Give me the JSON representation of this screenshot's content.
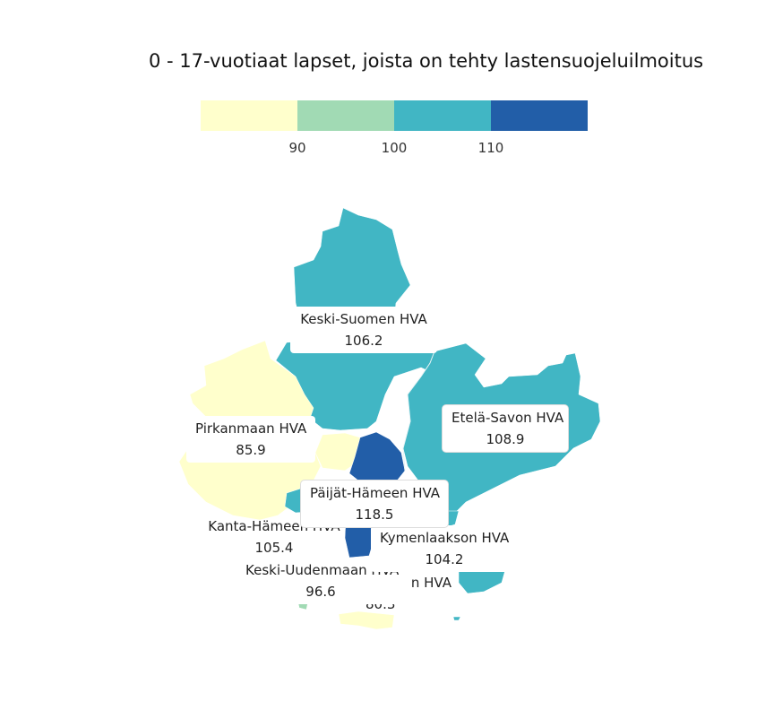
{
  "title": "0 - 17-vuotiaat lapset, joista on tehty lastensuojeluilmoitus",
  "legend": {
    "ticks": [
      "90",
      "100",
      "110"
    ],
    "colors": [
      "#ffffcc",
      "#a1dab4",
      "#41b6c4",
      "#225ea8"
    ]
  },
  "chart_data": {
    "type": "choropleth",
    "title": "0 - 17-vuotiaat lapset, joista on tehty lastensuojeluilmoitus",
    "bins": [
      90,
      100,
      110
    ],
    "regions": [
      {
        "name": "Keski-Suomen HVA",
        "value": "106.2"
      },
      {
        "name": "Pirkanmaan HVA",
        "value": "85.9"
      },
      {
        "name": "Etelä-Savon HVA",
        "value": "108.9"
      },
      {
        "name": "Päijät-Hämeen HVA",
        "value": "118.5"
      },
      {
        "name": "Kanta-Hämeen HVA",
        "value": "105.4"
      },
      {
        "name": "Kymenlaakson HVA",
        "value": "104.2"
      },
      {
        "name": "Keski-Uudenmaan HVA",
        "value": "96.6"
      },
      {
        "name": "n HVA",
        "value": "80.3"
      }
    ]
  }
}
